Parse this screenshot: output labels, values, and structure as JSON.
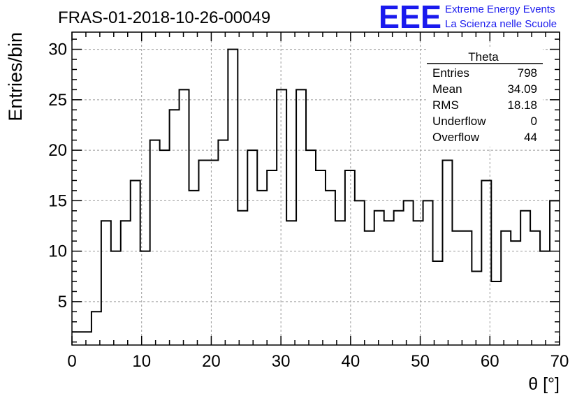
{
  "run_title": "FRAS-01-2018-10-26-00049",
  "logo": {
    "letters": "EEE",
    "line1": "Extreme Energy Events",
    "line2": "La Scienza nelle Scuole",
    "color": "#1a1aee"
  },
  "stats_box": {
    "title": "Theta",
    "rows": [
      {
        "label": "Entries",
        "value": "798"
      },
      {
        "label": "Mean",
        "value": "34.09"
      },
      {
        "label": "RMS",
        "value": "18.18"
      },
      {
        "label": "Underflow",
        "value": "0"
      },
      {
        "label": "Overflow",
        "value": "44"
      }
    ]
  },
  "chart_data": {
    "type": "histogram",
    "title": "FRAS-01-2018-10-26-00049",
    "xlabel": "θ [°]",
    "ylabel": "Entries/bin",
    "xlim": [
      0,
      70
    ],
    "ylim": [
      0.7,
      31.7
    ],
    "xticks": [
      0,
      10,
      20,
      30,
      40,
      50,
      60,
      70
    ],
    "yticks": [
      5,
      10,
      15,
      20,
      25,
      30
    ],
    "grid": true,
    "bin_width": 1.4,
    "bin_edges_start": 0,
    "values": [
      2,
      2,
      4,
      13,
      10,
      13,
      17,
      10,
      21,
      20,
      24,
      26,
      16,
      19,
      19,
      21,
      30,
      14,
      20,
      16,
      18,
      26,
      13,
      26,
      20,
      18,
      16,
      13,
      18,
      15,
      12,
      14,
      13,
      14,
      15,
      13,
      15,
      9,
      19,
      12,
      12,
      8,
      17,
      7,
      12,
      11,
      14,
      12,
      10,
      15
    ],
    "line_color": "#000000"
  }
}
